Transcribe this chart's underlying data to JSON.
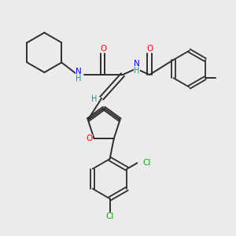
{
  "background_color": "#ebebeb",
  "bond_color": "#2d2d2d",
  "atom_colors": {
    "O": "#ff0000",
    "N": "#0000ff",
    "Cl": "#00aa00",
    "H": "#2d8a8a",
    "C": "#2d2d2d"
  },
  "figsize": [
    3.0,
    3.0
  ],
  "dpi": 100
}
